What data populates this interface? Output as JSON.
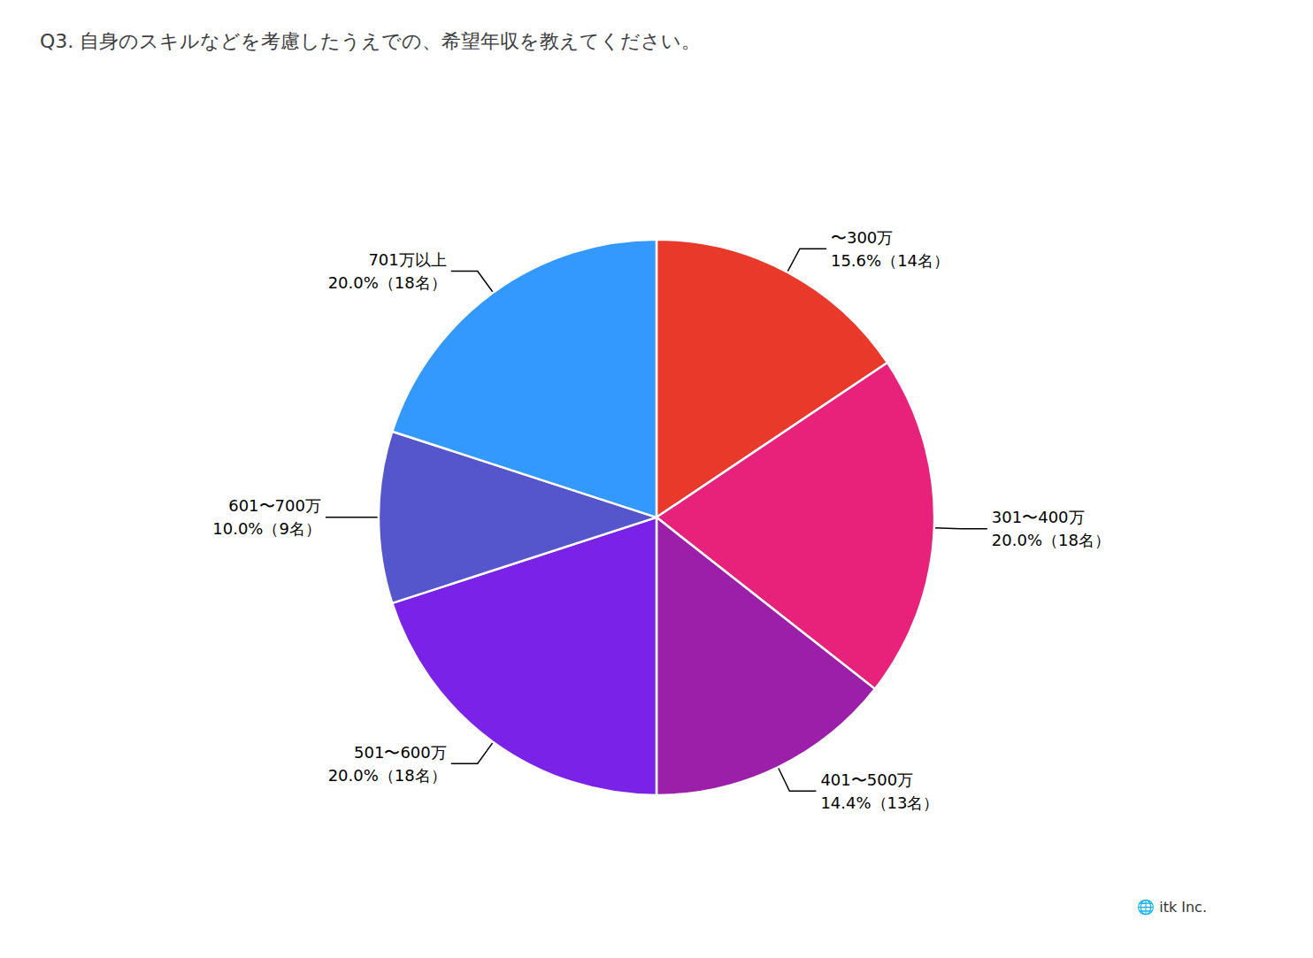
{
  "chart_data": {
    "type": "pie",
    "title": "Q3. 自身のスキルなどを考慮したうえでの、希望年収を教えてください。",
    "categories": [
      "〜300万",
      "301〜400万",
      "401〜500万",
      "501〜600万",
      "601〜700万",
      "701万以上"
    ],
    "values": [
      15.6,
      20.0,
      14.4,
      20.0,
      10.0,
      20.0
    ],
    "value_labels": [
      "15.6%（14名）",
      "20.0%（18名）",
      "14.4%（13名）",
      "20.0%（18名）",
      "10.0%（9名）",
      "20.0%（18名）"
    ],
    "colors": [
      "#E8392A",
      "#E8217A",
      "#9B1FA8",
      "#7B22E8",
      "#5555CC",
      "#3399FF"
    ],
    "data_labels": true,
    "annotations": [
      "🌐 itk Inc."
    ]
  }
}
